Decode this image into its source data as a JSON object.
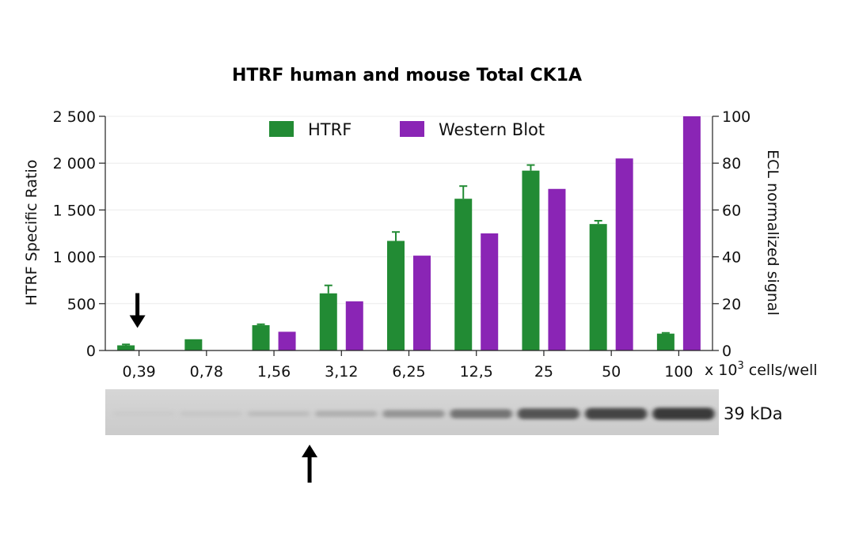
{
  "chart_data": {
    "type": "bar",
    "title": "HTRF human and mouse Total CK1A",
    "xlabel_prefix": "x 10",
    "xlabel_exp": "3",
    "xlabel_suffix": " cells/well",
    "ylabel": "HTRF Specific Ratio",
    "y2label": "ECL normalized signal",
    "categories": [
      "0,39",
      "0,78",
      "1,56",
      "3,12",
      "6,25",
      "12,5",
      "25",
      "50",
      "100"
    ],
    "ylim": [
      0,
      2500
    ],
    "yticks": [
      0,
      500,
      1000,
      1500,
      2000,
      2500
    ],
    "ytick_labels": [
      "0",
      "500",
      "1 000",
      "1 500",
      "2 000",
      "2 500"
    ],
    "y2lim": [
      0,
      100
    ],
    "y2ticks": [
      0,
      20,
      40,
      60,
      80,
      100
    ],
    "y2tick_labels": [
      "0",
      "20",
      "40",
      "60",
      "80",
      "100"
    ],
    "grid": true,
    "legend_position": "top-center",
    "series": [
      {
        "name": "HTRF",
        "color": "#228B34",
        "axis": "left",
        "values": [
          55,
          120,
          270,
          610,
          1170,
          1620,
          1920,
          1350,
          180
        ],
        "errors": [
          10,
          0,
          10,
          85,
          95,
          135,
          60,
          35,
          8
        ]
      },
      {
        "name": "Western Blot",
        "color": "#8A25B5",
        "axis": "right",
        "values": [
          0,
          0,
          8,
          21,
          40.5,
          50,
          69,
          82,
          100
        ]
      }
    ],
    "blot_label": "39 kDa",
    "blot_intensity": [
      0.02,
      0.04,
      0.1,
      0.18,
      0.35,
      0.55,
      0.75,
      0.85,
      0.92
    ],
    "arrows": [
      {
        "category": "0,39",
        "direction": "down",
        "target": "HTRF"
      },
      {
        "category": "1,56",
        "direction": "up",
        "target": "Western Blot"
      }
    ]
  }
}
